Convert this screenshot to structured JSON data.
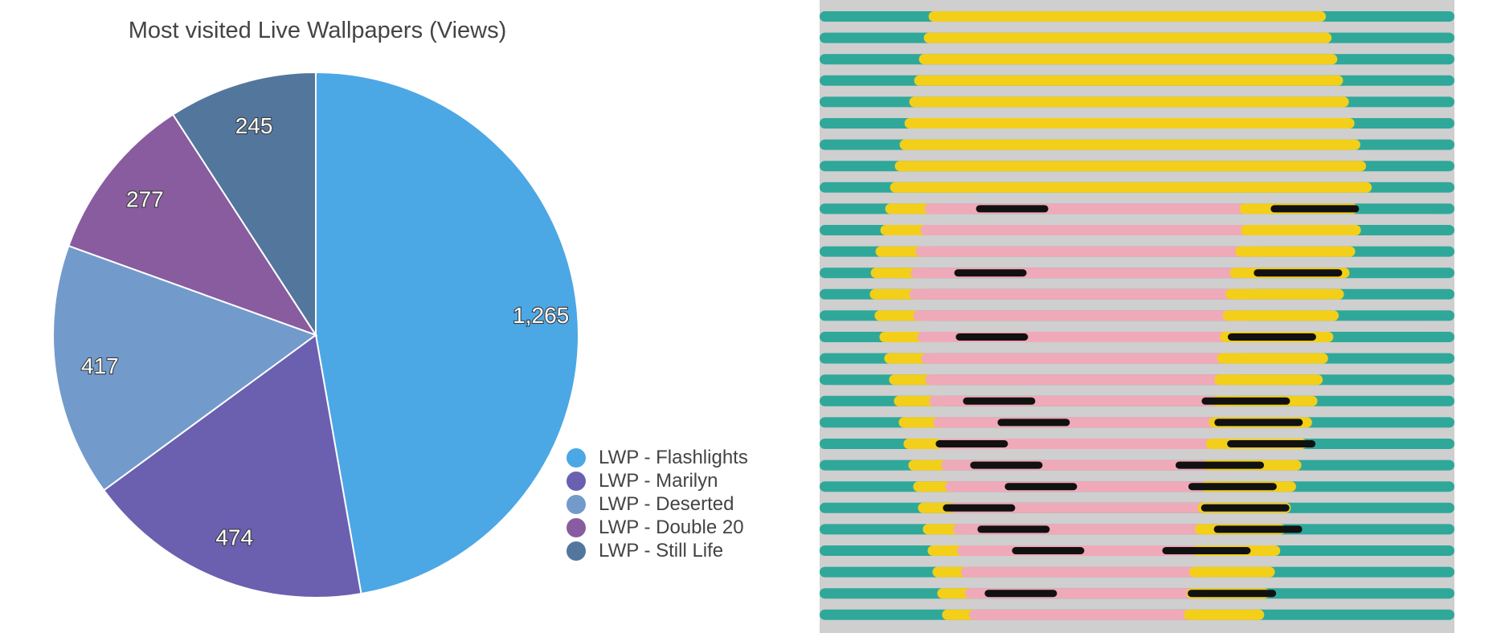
{
  "chart_data": {
    "type": "pie",
    "title": "Most visited Live Wallpapers (Views)",
    "categories": [
      "LWP - Flashlights",
      "LWP - Marilyn",
      "LWP - Deserted",
      "LWP - Double 20",
      "LWP - Still Life"
    ],
    "values": [
      1265,
      474,
      417,
      277,
      245
    ],
    "value_labels": [
      "1,265",
      "474",
      "417",
      "277",
      "245"
    ],
    "colors": [
      "#4ca7e5",
      "#6b5fb0",
      "#729bcc",
      "#885c9e",
      "#53769d"
    ],
    "start": "12 o'clock",
    "direction": "clockwise",
    "legend_placement": "bottom-right"
  },
  "artwork": {
    "description_name": "striped-portrait-art",
    "background": "#cfcfcf",
    "teal": "#2fa89a",
    "yellow": "#f3cf1a",
    "pink": "#f0a9b9",
    "black": "#111111"
  }
}
